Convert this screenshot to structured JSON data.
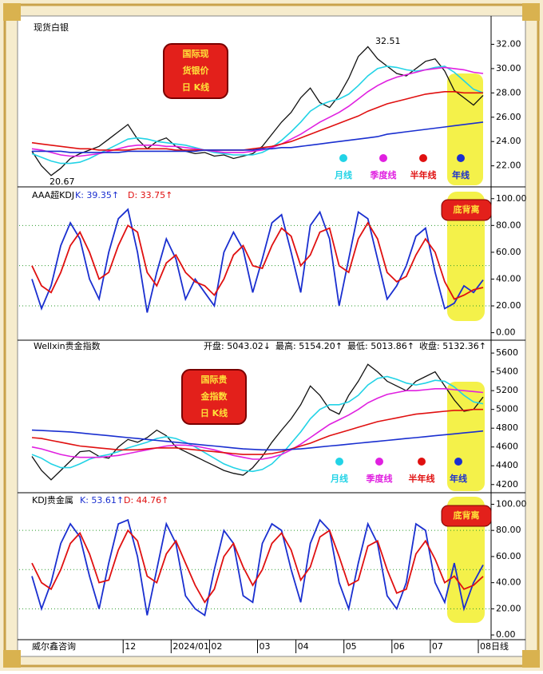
{
  "chart_data": [
    {
      "type": "line",
      "title": "现货白银",
      "box_title": [
        "国际现",
        "货银价",
        "日 K线"
      ],
      "annotations": [
        "32.51",
        "20.67"
      ],
      "ylim": [
        20.4,
        34.2
      ],
      "yticks": [
        {
          "value": 22,
          "label": "22.00"
        },
        {
          "value": 24,
          "label": "24.00"
        },
        {
          "value": 26,
          "label": "26.00"
        },
        {
          "value": 28,
          "label": "28.00"
        },
        {
          "value": 30,
          "label": "30.00"
        },
        {
          "value": 32,
          "label": "32.00"
        }
      ],
      "close": [
        23.2,
        22.0,
        21.2,
        21.8,
        22.6,
        23.0,
        23.3,
        23.6,
        24.2,
        24.8,
        25.4,
        24.2,
        23.4,
        24.0,
        24.3,
        23.6,
        23.2,
        23.0,
        23.1,
        22.8,
        22.9,
        22.6,
        22.8,
        23.0,
        23.6,
        24.6,
        25.6,
        26.4,
        27.6,
        28.4,
        27.2,
        26.8,
        27.8,
        29.2,
        31.0,
        31.8,
        30.8,
        30.2,
        29.6,
        29.4,
        30.0,
        30.6,
        30.8,
        29.8,
        28.2,
        27.6,
        27.0,
        27.8
      ],
      "series": [
        {
          "name": "月线",
          "color": "#22d3e6",
          "values": [
            23.0,
            22.7,
            22.4,
            22.2,
            22.2,
            22.3,
            22.6,
            23.0,
            23.4,
            23.8,
            24.2,
            24.3,
            24.2,
            24.0,
            23.9,
            23.8,
            23.7,
            23.5,
            23.3,
            23.1,
            23.0,
            22.9,
            22.9,
            22.9,
            23.1,
            23.5,
            24.1,
            24.8,
            25.6,
            26.5,
            27.0,
            27.3,
            27.5,
            27.9,
            28.6,
            29.4,
            30.0,
            30.2,
            30.1,
            29.9,
            29.8,
            29.9,
            30.1,
            30.2,
            29.7,
            29.0,
            28.3,
            28.0
          ]
        },
        {
          "name": "季度线",
          "color": "#e020e0",
          "values": [
            23.4,
            23.3,
            23.1,
            22.9,
            22.8,
            22.8,
            22.9,
            23.0,
            23.2,
            23.4,
            23.6,
            23.7,
            23.7,
            23.7,
            23.6,
            23.6,
            23.5,
            23.4,
            23.3,
            23.2,
            23.1,
            23.1,
            23.1,
            23.2,
            23.3,
            23.5,
            23.8,
            24.2,
            24.6,
            25.1,
            25.6,
            26.0,
            26.4,
            26.9,
            27.5,
            28.1,
            28.6,
            29.0,
            29.3,
            29.5,
            29.7,
            29.9,
            30.0,
            30.1,
            30.0,
            29.9,
            29.7,
            29.6
          ]
        },
        {
          "name": "半年线",
          "color": "#e01010",
          "values": [
            23.9,
            23.8,
            23.7,
            23.6,
            23.5,
            23.4,
            23.4,
            23.3,
            23.3,
            23.3,
            23.3,
            23.4,
            23.4,
            23.4,
            23.4,
            23.3,
            23.3,
            23.3,
            23.3,
            23.3,
            23.3,
            23.3,
            23.3,
            23.4,
            23.5,
            23.6,
            23.8,
            24.0,
            24.3,
            24.6,
            24.9,
            25.2,
            25.5,
            25.8,
            26.1,
            26.5,
            26.8,
            27.1,
            27.3,
            27.5,
            27.7,
            27.9,
            28.0,
            28.1,
            28.1,
            28.0,
            28.0,
            28.0
          ]
        },
        {
          "name": "年线",
          "color": "#1a2fd0",
          "values": [
            23.2,
            23.2,
            23.2,
            23.2,
            23.1,
            23.1,
            23.1,
            23.1,
            23.1,
            23.1,
            23.2,
            23.2,
            23.2,
            23.2,
            23.2,
            23.2,
            23.2,
            23.2,
            23.3,
            23.3,
            23.3,
            23.3,
            23.3,
            23.3,
            23.4,
            23.4,
            23.5,
            23.5,
            23.6,
            23.7,
            23.8,
            23.9,
            24.0,
            24.1,
            24.2,
            24.3,
            24.4,
            24.6,
            24.7,
            24.8,
            24.9,
            25.0,
            25.1,
            25.2,
            25.3,
            25.4,
            25.5,
            25.6
          ]
        }
      ]
    },
    {
      "type": "line",
      "header": [
        "AAA超KDJ",
        "K: 39.35↑",
        "D: 33.75↑"
      ],
      "badge": "底背离",
      "ylim": [
        -5,
        107
      ],
      "hlines": [
        20,
        50,
        80
      ],
      "yticks": [
        {
          "value": 0,
          "label": "0.00"
        },
        {
          "value": 20,
          "label": "20.00"
        },
        {
          "value": 40,
          "label": "40.00"
        },
        {
          "value": 60,
          "label": "60.00"
        },
        {
          "value": 80,
          "label": "80.00"
        },
        {
          "value": 100,
          "label": "100.00"
        }
      ],
      "series": [
        {
          "color": "#1a2fd0",
          "values": [
            40,
            18,
            35,
            65,
            82,
            70,
            40,
            25,
            60,
            85,
            92,
            60,
            15,
            45,
            70,
            55,
            25,
            40,
            30,
            20,
            60,
            75,
            62,
            30,
            55,
            82,
            88,
            60,
            30,
            80,
            90,
            70,
            20,
            55,
            90,
            85,
            55,
            25,
            35,
            50,
            72,
            78,
            45,
            18,
            22,
            35,
            30,
            39.35
          ]
        },
        {
          "color": "#e01010",
          "values": [
            50,
            35,
            30,
            45,
            65,
            75,
            60,
            40,
            45,
            65,
            80,
            75,
            45,
            35,
            52,
            58,
            45,
            38,
            35,
            28,
            40,
            58,
            65,
            50,
            48,
            65,
            78,
            72,
            50,
            58,
            75,
            78,
            50,
            45,
            70,
            82,
            70,
            45,
            38,
            42,
            58,
            70,
            60,
            38,
            25,
            28,
            32,
            33.75
          ]
        }
      ]
    },
    {
      "type": "line",
      "title": "Wellxin贵金指数",
      "box_title": [
        "国际贵",
        "金指数",
        "日 K线"
      ],
      "header": [
        "开盘: 5043.02↓",
        "最高: 5154.20↑",
        "最低: 5013.86↑",
        "收盘: 5132.36↑"
      ],
      "ylim": [
        4130,
        5720
      ],
      "yticks": [
        4200,
        4400,
        4600,
        4800,
        5000,
        5200,
        5400,
        5600
      ],
      "close": [
        4500,
        4350,
        4250,
        4350,
        4450,
        4550,
        4560,
        4500,
        4480,
        4600,
        4680,
        4650,
        4700,
        4780,
        4720,
        4600,
        4550,
        4500,
        4450,
        4400,
        4350,
        4320,
        4300,
        4380,
        4500,
        4650,
        4780,
        4900,
        5050,
        5250,
        5150,
        5000,
        4950,
        5150,
        5300,
        5480,
        5400,
        5300,
        5250,
        5200,
        5300,
        5350,
        5400,
        5250,
        5100,
        4980,
        5000,
        5132
      ],
      "series": [
        {
          "name": "月线",
          "color": "#22d3e6",
          "values": [
            4520,
            4480,
            4420,
            4380,
            4380,
            4420,
            4470,
            4500,
            4520,
            4550,
            4590,
            4620,
            4650,
            4690,
            4710,
            4690,
            4650,
            4600,
            4540,
            4480,
            4420,
            4380,
            4350,
            4340,
            4360,
            4420,
            4520,
            4640,
            4760,
            4900,
            5000,
            5050,
            5050,
            5080,
            5150,
            5260,
            5330,
            5350,
            5320,
            5280,
            5260,
            5280,
            5310,
            5300,
            5240,
            5150,
            5080,
            5060
          ]
        },
        {
          "name": "季度线",
          "color": "#e020e0",
          "values": [
            4600,
            4580,
            4550,
            4520,
            4500,
            4490,
            4490,
            4490,
            4500,
            4510,
            4530,
            4550,
            4570,
            4590,
            4610,
            4620,
            4620,
            4610,
            4590,
            4570,
            4540,
            4510,
            4490,
            4470,
            4470,
            4490,
            4520,
            4570,
            4630,
            4700,
            4770,
            4840,
            4890,
            4940,
            5000,
            5070,
            5120,
            5160,
            5180,
            5200,
            5200,
            5210,
            5220,
            5220,
            5210,
            5200,
            5190,
            5180
          ]
        },
        {
          "name": "半年线",
          "color": "#e01010",
          "values": [
            4700,
            4690,
            4670,
            4650,
            4630,
            4610,
            4600,
            4590,
            4580,
            4570,
            4570,
            4570,
            4580,
            4590,
            4590,
            4590,
            4580,
            4570,
            4560,
            4550,
            4540,
            4530,
            4520,
            4520,
            4520,
            4530,
            4550,
            4580,
            4610,
            4640,
            4680,
            4720,
            4750,
            4780,
            4810,
            4840,
            4870,
            4890,
            4910,
            4930,
            4950,
            4960,
            4970,
            4980,
            4990,
            4990,
            5000,
            5000
          ]
        },
        {
          "name": "年线",
          "color": "#1a2fd0",
          "values": [
            4780,
            4775,
            4770,
            4765,
            4760,
            4750,
            4740,
            4730,
            4720,
            4710,
            4700,
            4690,
            4680,
            4670,
            4660,
            4650,
            4640,
            4630,
            4620,
            4610,
            4600,
            4590,
            4580,
            4575,
            4570,
            4570,
            4570,
            4575,
            4580,
            4590,
            4600,
            4610,
            4620,
            4630,
            4640,
            4650,
            4660,
            4670,
            4680,
            4690,
            4700,
            4710,
            4720,
            4730,
            4740,
            4750,
            4760,
            4770
          ]
        }
      ]
    },
    {
      "type": "line",
      "header": [
        "KDJ贵金属",
        "K: 53.61↑",
        "D: 44.76↑"
      ],
      "badge": "底背离",
      "ylim": [
        -3,
        107
      ],
      "hlines": [
        20,
        50,
        80
      ],
      "yticks": [
        {
          "value": 0,
          "label": "0.00"
        },
        {
          "value": 20,
          "label": "20.00"
        },
        {
          "value": 40,
          "label": "40.00"
        },
        {
          "value": 60,
          "label": "60.00"
        },
        {
          "value": 80,
          "label": "80.00"
        },
        {
          "value": 100,
          "label": "100.00"
        }
      ],
      "series": [
        {
          "color": "#1a2fd0",
          "values": [
            45,
            20,
            40,
            70,
            85,
            75,
            45,
            20,
            55,
            85,
            88,
            60,
            15,
            50,
            85,
            70,
            30,
            20,
            15,
            50,
            80,
            70,
            30,
            25,
            70,
            85,
            80,
            50,
            25,
            70,
            88,
            80,
            40,
            20,
            55,
            85,
            70,
            30,
            20,
            40,
            85,
            80,
            40,
            25,
            55,
            20,
            40,
            53.61
          ]
        },
        {
          "color": "#e01010",
          "values": [
            55,
            40,
            35,
            50,
            70,
            78,
            62,
            40,
            42,
            65,
            80,
            72,
            45,
            40,
            62,
            72,
            55,
            38,
            25,
            35,
            60,
            70,
            52,
            38,
            50,
            70,
            78,
            65,
            42,
            52,
            75,
            80,
            60,
            38,
            42,
            68,
            72,
            50,
            32,
            35,
            62,
            72,
            58,
            40,
            45,
            35,
            38,
            44.76
          ]
        }
      ],
      "source": "威尔鑫咨询",
      "period": "日线",
      "categories": [
        null,
        null,
        null,
        null,
        null,
        null,
        null,
        null,
        null,
        null,
        "12",
        null,
        null,
        null,
        null,
        "2024/01",
        null,
        null,
        null,
        "02",
        null,
        null,
        null,
        null,
        "03",
        null,
        null,
        null,
        "04",
        null,
        null,
        null,
        null,
        "05",
        null,
        null,
        null,
        null,
        "06",
        null,
        null,
        null,
        "07",
        null,
        null,
        null,
        null,
        "08"
      ]
    }
  ]
}
